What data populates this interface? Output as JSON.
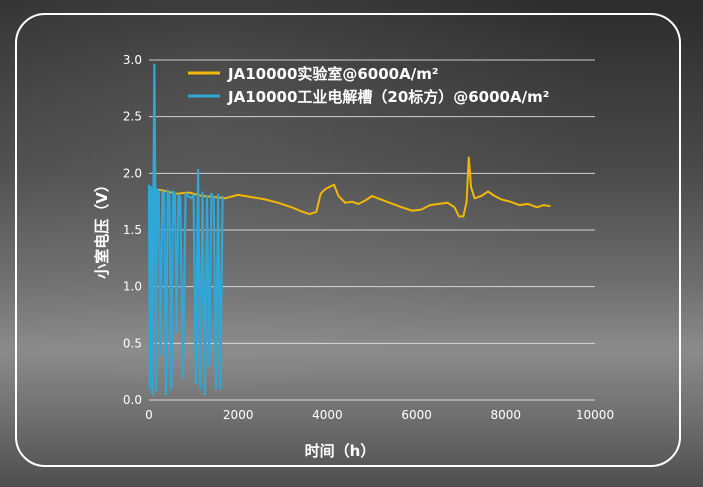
{
  "chart_data": {
    "type": "line",
    "xlabel": "时间（h）",
    "ylabel": "小室电压（V）",
    "xlim": [
      0,
      10000
    ],
    "ylim": [
      0,
      3.0
    ],
    "x_ticks": [
      "0",
      "2000",
      "4000",
      "6000",
      "8000",
      "10000"
    ],
    "y_ticks": [
      "0.0",
      "0.5",
      "1.0",
      "1.5",
      "2.0",
      "2.5",
      "3.0"
    ],
    "grid": "horizontal",
    "legend_position": "top",
    "colors": {
      "lab": "#f2b705",
      "industrial": "#2fa8d8",
      "grid": "#e6e6e6",
      "frame": "#ffffff"
    },
    "series": [
      {
        "name": "JA10000实验室@6000A/m²",
        "points": [
          [
            0,
            1.86
          ],
          [
            300,
            1.85
          ],
          [
            600,
            1.82
          ],
          [
            900,
            1.83
          ],
          [
            1200,
            1.8
          ],
          [
            1500,
            1.79
          ],
          [
            1700,
            1.78
          ],
          [
            2000,
            1.81
          ],
          [
            2300,
            1.79
          ],
          [
            2600,
            1.77
          ],
          [
            2900,
            1.74
          ],
          [
            3200,
            1.7
          ],
          [
            3450,
            1.66
          ],
          [
            3600,
            1.64
          ],
          [
            3750,
            1.66
          ],
          [
            3850,
            1.82
          ],
          [
            3950,
            1.86
          ],
          [
            4050,
            1.88
          ],
          [
            4150,
            1.9
          ],
          [
            4250,
            1.8
          ],
          [
            4400,
            1.74
          ],
          [
            4550,
            1.75
          ],
          [
            4700,
            1.73
          ],
          [
            4850,
            1.76
          ],
          [
            5000,
            1.8
          ],
          [
            5200,
            1.77
          ],
          [
            5400,
            1.74
          ],
          [
            5600,
            1.71
          ],
          [
            5750,
            1.69
          ],
          [
            5900,
            1.67
          ],
          [
            6100,
            1.68
          ],
          [
            6300,
            1.72
          ],
          [
            6500,
            1.73
          ],
          [
            6700,
            1.74
          ],
          [
            6850,
            1.7
          ],
          [
            6950,
            1.62
          ],
          [
            7050,
            1.62
          ],
          [
            7120,
            1.75
          ],
          [
            7170,
            2.14
          ],
          [
            7220,
            1.88
          ],
          [
            7300,
            1.78
          ],
          [
            7450,
            1.8
          ],
          [
            7600,
            1.84
          ],
          [
            7750,
            1.8
          ],
          [
            7900,
            1.77
          ],
          [
            8100,
            1.75
          ],
          [
            8300,
            1.72
          ],
          [
            8500,
            1.73
          ],
          [
            8700,
            1.7
          ],
          [
            8850,
            1.72
          ],
          [
            9000,
            1.71
          ]
        ]
      },
      {
        "name": "JA10000工业电解槽（20标方）@6000A/m²",
        "points": [
          [
            0,
            1.9
          ],
          [
            20,
            0.1
          ],
          [
            40,
            1.88
          ],
          [
            60,
            1.85
          ],
          [
            80,
            0.05
          ],
          [
            100,
            1.87
          ],
          [
            120,
            2.96
          ],
          [
            140,
            1.9
          ],
          [
            160,
            0.08
          ],
          [
            180,
            1.86
          ],
          [
            220,
            1.83
          ],
          [
            260,
            0.4
          ],
          [
            300,
            1.84
          ],
          [
            340,
            1.82
          ],
          [
            380,
            0.05
          ],
          [
            420,
            1.85
          ],
          [
            460,
            1.8
          ],
          [
            500,
            0.1
          ],
          [
            540,
            1.84
          ],
          [
            580,
            1.82
          ],
          [
            620,
            0.6
          ],
          [
            660,
            1.81
          ],
          [
            700,
            1.79
          ],
          [
            760,
            0.2
          ],
          [
            820,
            1.82
          ],
          [
            880,
            1.8
          ],
          [
            940,
            1.78
          ],
          [
            1000,
            1.81
          ],
          [
            1050,
            0.15
          ],
          [
            1100,
            2.03
          ],
          [
            1150,
            0.1
          ],
          [
            1200,
            1.83
          ],
          [
            1250,
            0.05
          ],
          [
            1300,
            1.8
          ],
          [
            1350,
            0.3
          ],
          [
            1400,
            1.82
          ],
          [
            1450,
            1.79
          ],
          [
            1500,
            0.1
          ],
          [
            1550,
            1.81
          ],
          [
            1600,
            0.1
          ],
          [
            1650,
            1.8
          ]
        ]
      }
    ]
  }
}
